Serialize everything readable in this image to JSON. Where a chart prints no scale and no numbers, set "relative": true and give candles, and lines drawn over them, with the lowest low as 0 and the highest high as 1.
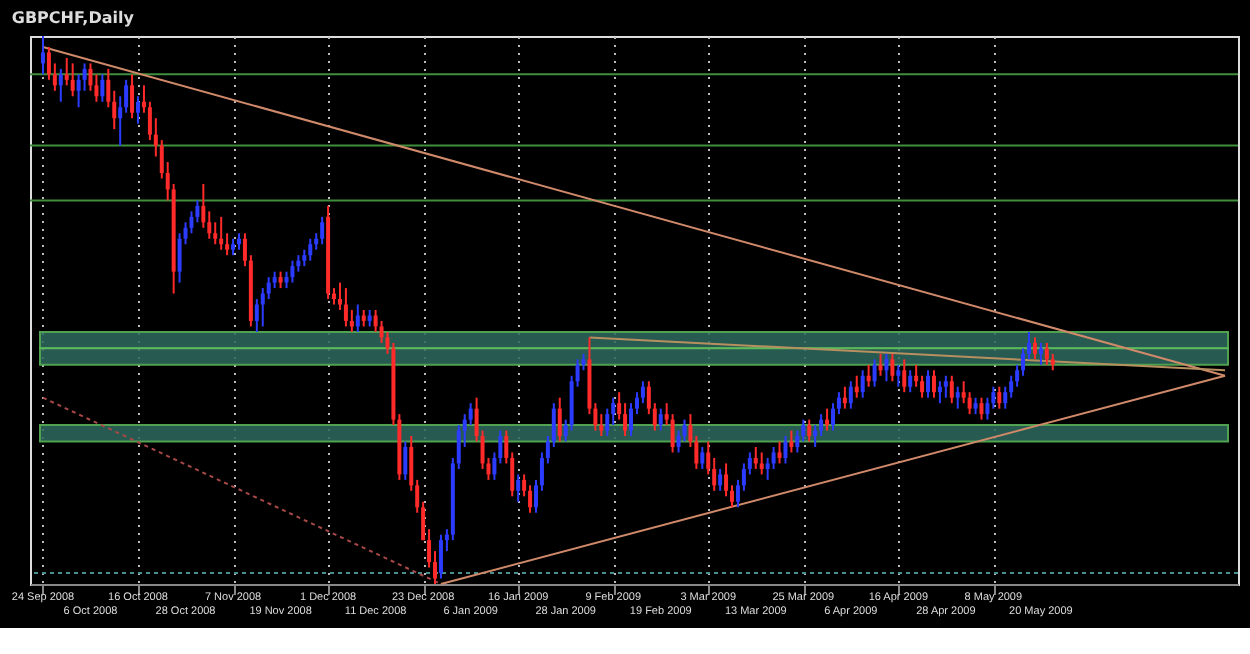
{
  "chart_data": {
    "type": "candlestick",
    "title": "GBPCHF,Daily",
    "relative": true,
    "grid": "x",
    "categories": [
      "24 Sep 2008",
      null,
      null,
      null,
      null,
      null,
      null,
      null,
      "6 Oct 2008",
      null,
      null,
      null,
      null,
      null,
      null,
      null,
      "16 Oct 2008",
      null,
      null,
      null,
      null,
      null,
      null,
      null,
      "28 Oct 2008",
      null,
      null,
      null,
      null,
      null,
      null,
      null,
      "7 Nov 2008",
      null,
      null,
      null,
      null,
      null,
      null,
      null,
      "19 Nov 2008",
      null,
      null,
      null,
      null,
      null,
      null,
      null,
      "1 Dec 2008",
      null,
      null,
      null,
      null,
      null,
      null,
      null,
      "11 Dec 2008",
      null,
      null,
      null,
      null,
      null,
      null,
      null,
      "23 Dec 2008",
      null,
      null,
      null,
      null,
      null,
      null,
      null,
      "6 Jan 2009",
      null,
      null,
      null,
      null,
      null,
      null,
      null,
      "16 Jan 2009",
      null,
      null,
      null,
      null,
      null,
      null,
      null,
      "28 Jan 2009",
      null,
      null,
      null,
      null,
      null,
      null,
      null,
      "9 Feb 2009",
      null,
      null,
      null,
      null,
      null,
      null,
      null,
      "19 Feb 2009",
      null,
      null,
      null,
      null,
      null,
      null,
      null,
      "3 Mar 2009",
      null,
      null,
      null,
      null,
      null,
      null,
      null,
      "13 Mar 2009",
      null,
      null,
      null,
      null,
      null,
      null,
      null,
      "25 Mar 2009",
      null,
      null,
      null,
      null,
      null,
      null,
      null,
      "6 Apr 2009",
      null,
      null,
      null,
      null,
      null,
      null,
      null,
      "16 Apr 2009",
      null,
      null,
      null,
      null,
      null,
      null,
      null,
      "28 Apr 2009",
      null,
      null,
      null,
      null,
      null,
      null,
      null,
      "8 May 2009",
      null,
      null,
      null,
      null,
      null,
      null,
      null,
      "20 May 2009",
      null,
      null,
      null,
      null,
      null,
      null,
      null,
      null,
      null,
      null,
      null,
      null,
      null,
      null,
      null,
      null,
      null,
      null,
      null,
      null,
      null,
      null,
      null,
      null,
      null,
      null,
      null,
      null,
      null,
      null,
      null
    ],
    "ohlc": [
      [
        0.95,
        1.0,
        0.93,
        0.97
      ],
      [
        0.97,
        0.98,
        0.92,
        0.93
      ],
      [
        0.93,
        0.95,
        0.9,
        0.91
      ],
      [
        0.91,
        0.94,
        0.88,
        0.93
      ],
      [
        0.93,
        0.96,
        0.91,
        0.92
      ],
      [
        0.92,
        0.95,
        0.89,
        0.9
      ],
      [
        0.9,
        0.93,
        0.87,
        0.92
      ],
      [
        0.92,
        0.95,
        0.9,
        0.94
      ],
      [
        0.94,
        0.95,
        0.9,
        0.91
      ],
      [
        0.91,
        0.93,
        0.88,
        0.89
      ],
      [
        0.89,
        0.93,
        0.88,
        0.92
      ],
      [
        0.92,
        0.94,
        0.87,
        0.88
      ],
      [
        0.88,
        0.9,
        0.83,
        0.85
      ],
      [
        0.85,
        0.89,
        0.8,
        0.87
      ],
      [
        0.87,
        0.92,
        0.86,
        0.91
      ],
      [
        0.91,
        0.93,
        0.85,
        0.86
      ],
      [
        0.86,
        0.89,
        0.84,
        0.88
      ],
      [
        0.88,
        0.91,
        0.86,
        0.87
      ],
      [
        0.87,
        0.88,
        0.81,
        0.82
      ],
      [
        0.82,
        0.85,
        0.78,
        0.8
      ],
      [
        0.8,
        0.81,
        0.74,
        0.75
      ],
      [
        0.75,
        0.77,
        0.7,
        0.72
      ],
      [
        0.72,
        0.73,
        0.53,
        0.57
      ],
      [
        0.57,
        0.64,
        0.55,
        0.63
      ],
      [
        0.63,
        0.66,
        0.62,
        0.65
      ],
      [
        0.65,
        0.68,
        0.64,
        0.67
      ],
      [
        0.67,
        0.7,
        0.66,
        0.69
      ],
      [
        0.69,
        0.73,
        0.65,
        0.66
      ],
      [
        0.66,
        0.68,
        0.63,
        0.64
      ],
      [
        0.64,
        0.66,
        0.62,
        0.63
      ],
      [
        0.63,
        0.67,
        0.61,
        0.62
      ],
      [
        0.62,
        0.64,
        0.6,
        0.61
      ],
      [
        0.61,
        0.63,
        0.6,
        0.62
      ],
      [
        0.62,
        0.64,
        0.61,
        0.63
      ],
      [
        0.63,
        0.64,
        0.58,
        0.59
      ],
      [
        0.59,
        0.6,
        0.47,
        0.48
      ],
      [
        0.48,
        0.52,
        0.46,
        0.51
      ],
      [
        0.51,
        0.54,
        0.47,
        0.53
      ],
      [
        0.53,
        0.56,
        0.52,
        0.55
      ],
      [
        0.55,
        0.57,
        0.54,
        0.56
      ],
      [
        0.56,
        0.57,
        0.54,
        0.55
      ],
      [
        0.55,
        0.57,
        0.54,
        0.56
      ],
      [
        0.56,
        0.59,
        0.55,
        0.58
      ],
      [
        0.58,
        0.6,
        0.57,
        0.59
      ],
      [
        0.59,
        0.61,
        0.58,
        0.6
      ],
      [
        0.6,
        0.63,
        0.59,
        0.62
      ],
      [
        0.62,
        0.64,
        0.61,
        0.63
      ],
      [
        0.63,
        0.67,
        0.62,
        0.66
      ],
      [
        0.67,
        0.69,
        0.52,
        0.53
      ],
      [
        0.53,
        0.54,
        0.51,
        0.52
      ],
      [
        0.52,
        0.55,
        0.5,
        0.51
      ],
      [
        0.51,
        0.54,
        0.47,
        0.48
      ],
      [
        0.48,
        0.5,
        0.46,
        0.47
      ],
      [
        0.47,
        0.51,
        0.46,
        0.49
      ],
      [
        0.49,
        0.5,
        0.47,
        0.48
      ],
      [
        0.48,
        0.5,
        0.47,
        0.49
      ],
      [
        0.49,
        0.5,
        0.46,
        0.47
      ],
      [
        0.47,
        0.48,
        0.44,
        0.45
      ],
      [
        0.45,
        0.46,
        0.42,
        0.43
      ],
      [
        0.43,
        0.44,
        0.29,
        0.3
      ],
      [
        0.3,
        0.31,
        0.19,
        0.2
      ],
      [
        0.2,
        0.26,
        0.19,
        0.25
      ],
      [
        0.25,
        0.27,
        0.17,
        0.18
      ],
      [
        0.18,
        0.19,
        0.13,
        0.14
      ],
      [
        0.14,
        0.15,
        0.08,
        0.08
      ],
      [
        0.08,
        0.1,
        0.03,
        0.04
      ],
      [
        0.04,
        0.06,
        0.0,
        0.01
      ],
      [
        0.02,
        0.09,
        0.01,
        0.08
      ],
      [
        0.08,
        0.1,
        0.06,
        0.09
      ],
      [
        0.09,
        0.23,
        0.08,
        0.22
      ],
      [
        0.22,
        0.29,
        0.21,
        0.28
      ],
      [
        0.28,
        0.31,
        0.25,
        0.3
      ],
      [
        0.3,
        0.33,
        0.29,
        0.32
      ],
      [
        0.32,
        0.34,
        0.26,
        0.27
      ],
      [
        0.27,
        0.28,
        0.21,
        0.22
      ],
      [
        0.22,
        0.23,
        0.19,
        0.2
      ],
      [
        0.2,
        0.24,
        0.19,
        0.23
      ],
      [
        0.23,
        0.28,
        0.22,
        0.27
      ],
      [
        0.27,
        0.28,
        0.22,
        0.23
      ],
      [
        0.23,
        0.24,
        0.16,
        0.17
      ],
      [
        0.17,
        0.2,
        0.15,
        0.19
      ],
      [
        0.19,
        0.2,
        0.16,
        0.17
      ],
      [
        0.17,
        0.18,
        0.13,
        0.14
      ],
      [
        0.14,
        0.19,
        0.13,
        0.18
      ],
      [
        0.18,
        0.24,
        0.17,
        0.23
      ],
      [
        0.23,
        0.27,
        0.22,
        0.26
      ],
      [
        0.26,
        0.33,
        0.25,
        0.32
      ],
      [
        0.32,
        0.34,
        0.26,
        0.27
      ],
      [
        0.27,
        0.3,
        0.26,
        0.29
      ],
      [
        0.29,
        0.38,
        0.28,
        0.37
      ],
      [
        0.37,
        0.41,
        0.36,
        0.4
      ],
      [
        0.4,
        0.42,
        0.39,
        0.41
      ],
      [
        0.41,
        0.45,
        0.31,
        0.32
      ],
      [
        0.32,
        0.33,
        0.28,
        0.29
      ],
      [
        0.29,
        0.31,
        0.27,
        0.28
      ],
      [
        0.28,
        0.32,
        0.27,
        0.31
      ],
      [
        0.31,
        0.34,
        0.29,
        0.33
      ],
      [
        0.33,
        0.35,
        0.3,
        0.31
      ],
      [
        0.31,
        0.33,
        0.27,
        0.28
      ],
      [
        0.28,
        0.33,
        0.27,
        0.32
      ],
      [
        0.32,
        0.35,
        0.31,
        0.34
      ],
      [
        0.34,
        0.37,
        0.33,
        0.36
      ],
      [
        0.36,
        0.37,
        0.31,
        0.32
      ],
      [
        0.32,
        0.33,
        0.28,
        0.29
      ],
      [
        0.29,
        0.32,
        0.28,
        0.31
      ],
      [
        0.31,
        0.33,
        0.29,
        0.3
      ],
      [
        0.3,
        0.31,
        0.24,
        0.25
      ],
      [
        0.25,
        0.28,
        0.24,
        0.27
      ],
      [
        0.27,
        0.3,
        0.26,
        0.29
      ],
      [
        0.29,
        0.31,
        0.25,
        0.26
      ],
      [
        0.26,
        0.27,
        0.21,
        0.22
      ],
      [
        0.22,
        0.25,
        0.21,
        0.24
      ],
      [
        0.24,
        0.26,
        0.2,
        0.21
      ],
      [
        0.21,
        0.23,
        0.17,
        0.18
      ],
      [
        0.18,
        0.21,
        0.17,
        0.2
      ],
      [
        0.2,
        0.22,
        0.16,
        0.17
      ],
      [
        0.17,
        0.18,
        0.14,
        0.15
      ],
      [
        0.15,
        0.19,
        0.14,
        0.18
      ],
      [
        0.18,
        0.22,
        0.17,
        0.21
      ],
      [
        0.21,
        0.24,
        0.2,
        0.23
      ],
      [
        0.23,
        0.25,
        0.21,
        0.22
      ],
      [
        0.22,
        0.24,
        0.2,
        0.21
      ],
      [
        0.21,
        0.23,
        0.19,
        0.22
      ],
      [
        0.22,
        0.25,
        0.21,
        0.24
      ],
      [
        0.24,
        0.26,
        0.22,
        0.23
      ],
      [
        0.23,
        0.27,
        0.22,
        0.26
      ],
      [
        0.26,
        0.28,
        0.24,
        0.25
      ],
      [
        0.25,
        0.28,
        0.24,
        0.27
      ],
      [
        0.27,
        0.3,
        0.26,
        0.29
      ],
      [
        0.29,
        0.3,
        0.26,
        0.27
      ],
      [
        0.27,
        0.29,
        0.25,
        0.28
      ],
      [
        0.28,
        0.31,
        0.27,
        0.3
      ],
      [
        0.3,
        0.32,
        0.28,
        0.29
      ],
      [
        0.29,
        0.33,
        0.28,
        0.32
      ],
      [
        0.32,
        0.35,
        0.31,
        0.34
      ],
      [
        0.34,
        0.36,
        0.32,
        0.33
      ],
      [
        0.33,
        0.37,
        0.32,
        0.36
      ],
      [
        0.36,
        0.38,
        0.34,
        0.35
      ],
      [
        0.35,
        0.39,
        0.34,
        0.38
      ],
      [
        0.38,
        0.4,
        0.36,
        0.37
      ],
      [
        0.37,
        0.41,
        0.36,
        0.4
      ],
      [
        0.4,
        0.42,
        0.38,
        0.39
      ],
      [
        0.39,
        0.42,
        0.37,
        0.41
      ],
      [
        0.41,
        0.42,
        0.37,
        0.38
      ],
      [
        0.38,
        0.4,
        0.36,
        0.39
      ],
      [
        0.39,
        0.41,
        0.35,
        0.36
      ],
      [
        0.36,
        0.39,
        0.35,
        0.38
      ],
      [
        0.38,
        0.4,
        0.36,
        0.37
      ],
      [
        0.37,
        0.38,
        0.34,
        0.35
      ],
      [
        0.35,
        0.39,
        0.34,
        0.38
      ],
      [
        0.38,
        0.39,
        0.34,
        0.35
      ],
      [
        0.35,
        0.37,
        0.33,
        0.36
      ],
      [
        0.36,
        0.38,
        0.34,
        0.37
      ],
      [
        0.37,
        0.38,
        0.33,
        0.34
      ],
      [
        0.34,
        0.36,
        0.32,
        0.35
      ],
      [
        0.35,
        0.37,
        0.33,
        0.34
      ],
      [
        0.34,
        0.35,
        0.31,
        0.32
      ],
      [
        0.32,
        0.34,
        0.31,
        0.33
      ],
      [
        0.33,
        0.34,
        0.3,
        0.31
      ],
      [
        0.31,
        0.34,
        0.3,
        0.33
      ],
      [
        0.33,
        0.36,
        0.32,
        0.35
      ],
      [
        0.35,
        0.36,
        0.32,
        0.33
      ],
      [
        0.33,
        0.36,
        0.32,
        0.35
      ],
      [
        0.35,
        0.38,
        0.34,
        0.37
      ],
      [
        0.37,
        0.4,
        0.36,
        0.39
      ],
      [
        0.39,
        0.43,
        0.38,
        0.42
      ],
      [
        0.42,
        0.46,
        0.41,
        0.44
      ],
      [
        0.44,
        0.45,
        0.41,
        0.42
      ],
      [
        0.42,
        0.44,
        0.4,
        0.43
      ],
      [
        0.43,
        0.44,
        0.4,
        0.41
      ],
      [
        0.41,
        0.42,
        0.39,
        0.4
      ],
      null,
      null,
      null,
      null,
      null,
      null,
      null,
      null,
      null,
      null,
      null,
      null,
      null,
      null,
      null,
      null,
      null,
      null,
      null,
      null,
      null,
      null,
      null,
      null,
      null,
      null,
      null,
      null,
      null
    ],
    "series": [
      {
        "type": "line",
        "color": "#d08a6a",
        "line_style": "solid",
        "values": [
          0.98,
          null,
          null,
          null,
          null,
          null,
          null,
          null,
          null,
          null,
          null,
          null,
          null,
          null,
          null,
          null,
          null,
          null,
          null,
          null,
          null,
          null,
          null,
          null,
          null,
          null,
          null,
          null,
          null,
          null,
          null,
          null,
          null,
          null,
          null,
          null,
          null,
          null,
          null,
          null,
          null,
          null,
          null,
          null,
          null,
          null,
          null,
          null,
          null,
          null,
          null,
          null,
          null,
          null,
          null,
          null,
          null,
          null,
          null,
          null,
          null,
          null,
          null,
          null,
          null,
          null,
          null,
          null,
          null,
          null,
          null,
          null,
          null,
          null,
          null,
          null,
          null,
          null,
          null,
          null,
          null,
          null,
          null,
          null,
          null,
          null,
          null,
          null,
          null,
          null,
          null,
          null,
          null,
          null,
          null,
          null,
          null,
          null,
          null,
          null,
          null,
          null,
          null,
          null,
          null,
          null,
          null,
          null,
          null,
          null,
          null,
          null,
          null,
          null,
          null,
          null,
          null,
          null,
          null,
          null,
          null,
          null,
          null,
          null,
          null,
          null,
          null,
          null,
          null,
          null,
          null,
          null,
          null,
          null,
          null,
          null,
          null,
          null,
          null,
          null,
          null,
          null,
          null,
          null,
          null,
          null,
          null,
          null,
          null,
          null,
          null,
          null,
          null,
          null,
          null,
          null,
          null,
          null,
          null,
          null,
          null,
          null,
          null,
          null,
          null,
          null,
          null,
          null,
          null,
          null,
          null,
          null,
          null,
          null,
          null,
          null,
          null,
          null,
          null,
          null,
          null,
          null,
          null,
          null,
          null,
          null,
          null,
          null,
          null,
          null,
          null,
          null,
          null,
          null,
          null,
          null,
          null,
          null,
          null,
          0.38
        ]
      },
      {
        "type": "line",
        "color": "#a84848",
        "line_style": "dotted",
        "values": [
          0.34,
          null,
          null,
          null,
          null,
          null,
          null,
          null,
          null,
          null,
          null,
          null,
          null,
          null,
          null,
          null,
          null,
          null,
          null,
          null,
          null,
          null,
          null,
          null,
          null,
          null,
          null,
          null,
          null,
          null,
          null,
          null,
          null,
          null,
          null,
          null,
          null,
          null,
          null,
          null,
          null,
          null,
          null,
          null,
          null,
          null,
          null,
          null,
          null,
          null,
          null,
          null,
          null,
          null,
          null,
          null,
          null,
          null,
          null,
          null,
          null,
          null,
          null,
          null,
          null,
          null,
          null,
          0.0,
          null,
          null,
          null,
          null,
          null,
          null,
          null,
          null,
          null,
          null,
          null,
          null,
          null,
          null,
          null,
          null,
          null,
          null,
          null,
          null,
          null,
          null,
          null,
          null,
          null,
          null,
          null,
          null,
          null,
          null,
          null,
          null,
          null,
          null,
          null,
          null,
          null,
          null,
          null,
          null,
          null,
          null,
          null,
          null,
          null,
          null,
          null,
          null,
          null,
          null,
          null,
          null,
          null,
          null,
          null,
          null,
          null,
          null,
          null,
          null,
          null,
          null,
          null,
          null,
          null,
          null,
          null,
          null,
          null,
          null,
          null,
          null,
          null,
          null,
          null,
          null,
          null,
          null,
          null,
          null,
          null,
          null,
          null,
          null,
          null,
          null,
          null,
          null,
          null,
          null,
          null,
          null,
          null,
          null,
          null,
          null,
          null,
          null,
          null,
          null,
          null,
          null,
          null,
          null,
          null,
          null,
          null,
          null,
          null,
          null,
          null,
          null,
          null,
          null,
          null,
          null,
          null,
          null,
          null,
          null,
          null,
          null,
          null,
          null,
          null,
          null,
          null,
          null,
          null,
          null,
          null,
          null
        ]
      },
      {
        "type": "line",
        "color": "#d08a6a",
        "line_style": "solid",
        "values": [
          null,
          null,
          null,
          null,
          null,
          null,
          null,
          null,
          null,
          null,
          null,
          null,
          null,
          null,
          null,
          null,
          null,
          null,
          null,
          null,
          null,
          null,
          null,
          null,
          null,
          null,
          null,
          null,
          null,
          null,
          null,
          null,
          null,
          null,
          null,
          null,
          null,
          null,
          null,
          null,
          null,
          null,
          null,
          null,
          null,
          null,
          null,
          null,
          null,
          null,
          null,
          null,
          null,
          null,
          null,
          null,
          null,
          null,
          null,
          null,
          null,
          null,
          null,
          null,
          null,
          null,
          null,
          0.0,
          null,
          null,
          null,
          null,
          null,
          null,
          null,
          null,
          null,
          null,
          null,
          null,
          null,
          null,
          null,
          null,
          null,
          null,
          null,
          null,
          null,
          null,
          null,
          null,
          null,
          null,
          null,
          null,
          null,
          null,
          null,
          null,
          null,
          null,
          null,
          null,
          null,
          null,
          null,
          null,
          null,
          null,
          null,
          null,
          null,
          null,
          null,
          null,
          null,
          null,
          null,
          null,
          null,
          null,
          null,
          null,
          null,
          null,
          null,
          null,
          null,
          null,
          null,
          null,
          null,
          null,
          null,
          null,
          null,
          null,
          null,
          null,
          null,
          null,
          null,
          null,
          null,
          null,
          null,
          null,
          null,
          null,
          null,
          null,
          null,
          null,
          null,
          null,
          null,
          null,
          null,
          null,
          null,
          null,
          null,
          null,
          null,
          null,
          null,
          null,
          null,
          null,
          null,
          null,
          null,
          null,
          null,
          null,
          null,
          null,
          null,
          null,
          null,
          null,
          null,
          null,
          null,
          null,
          null,
          null,
          null,
          null,
          null,
          null,
          null,
          null,
          null,
          null,
          null,
          null,
          null,
          0.38
        ]
      },
      {
        "type": "line",
        "color": "#b89060",
        "line_style": "solid",
        "values": [
          null,
          null,
          null,
          null,
          null,
          null,
          null,
          null,
          null,
          null,
          null,
          null,
          null,
          null,
          null,
          null,
          null,
          null,
          null,
          null,
          null,
          null,
          null,
          null,
          null,
          null,
          null,
          null,
          null,
          null,
          null,
          null,
          null,
          null,
          null,
          null,
          null,
          null,
          null,
          null,
          null,
          null,
          null,
          null,
          null,
          null,
          null,
          null,
          null,
          null,
          null,
          null,
          null,
          null,
          null,
          null,
          null,
          null,
          null,
          null,
          null,
          null,
          null,
          null,
          null,
          null,
          null,
          null,
          null,
          null,
          null,
          null,
          null,
          null,
          null,
          null,
          null,
          null,
          null,
          null,
          null,
          null,
          null,
          null,
          null,
          null,
          null,
          null,
          null,
          null,
          null,
          null,
          0.45,
          null,
          null,
          null,
          null,
          null,
          null,
          null,
          null,
          null,
          null,
          null,
          null,
          null,
          null,
          null,
          null,
          null,
          null,
          null,
          null,
          null,
          null,
          null,
          null,
          null,
          null,
          null,
          null,
          null,
          null,
          null,
          null,
          null,
          null,
          null,
          null,
          null,
          null,
          null,
          null,
          null,
          null,
          null,
          null,
          null,
          null,
          null,
          null,
          null,
          null,
          null,
          null,
          null,
          null,
          null,
          null,
          null,
          null,
          null,
          null,
          null,
          null,
          null,
          null,
          null,
          null,
          null,
          null,
          null,
          null,
          null,
          null,
          null,
          null,
          null,
          null,
          null,
          null,
          null,
          null,
          null,
          null,
          null,
          null,
          null,
          null,
          null,
          null,
          null,
          null,
          null,
          null,
          null,
          null,
          null,
          null,
          null,
          null,
          null,
          null,
          null,
          null,
          null,
          null,
          null,
          null,
          0.39
        ]
      }
    ],
    "bands": [
      {
        "axis": "y",
        "from": 0.43,
        "to": 0.46,
        "color": "#2e6a5e"
      },
      {
        "axis": "y",
        "from": 0.4,
        "to": 0.43,
        "color": "#2e6a5e"
      },
      {
        "axis": "y",
        "from": 0.26,
        "to": 0.29,
        "color": "#2e6a5e"
      }
    ],
    "ref_lines": [
      {
        "axis": "y",
        "value": 0.93,
        "color": "#3f8f3f",
        "line_style": "solid"
      },
      {
        "axis": "y",
        "value": 0.8,
        "color": "#3f8f3f",
        "line_style": "solid"
      },
      {
        "axis": "y",
        "value": 0.7,
        "color": "#3f8f3f",
        "line_style": "solid"
      },
      {
        "axis": "y",
        "value": 0.02,
        "color": "#4a9090",
        "line_style": "dotted"
      }
    ]
  }
}
